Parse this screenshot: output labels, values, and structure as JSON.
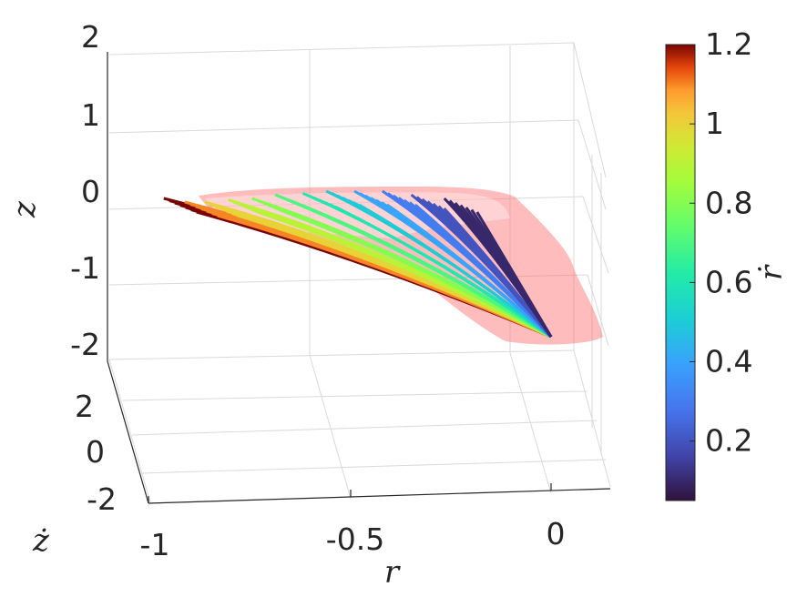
{
  "chart_data": {
    "type": "surface3d",
    "axes": {
      "x": {
        "label": "r",
        "ticks": [
          "-1",
          "-0.5",
          "0"
        ],
        "range": [
          -1,
          0.15
        ]
      },
      "y": {
        "label": "ż",
        "ticks": [
          "2",
          "0",
          "-2"
        ],
        "range": [
          -3,
          3
        ]
      },
      "z": {
        "label": "z",
        "ticks": [
          "2",
          "1",
          "0",
          "-1",
          "-2"
        ],
        "range": [
          -2,
          2
        ]
      }
    },
    "grid": true,
    "colorbar": {
      "label": "ṙ",
      "ticks": [
        "1.2",
        "1",
        "0.8",
        "0.6",
        "0.4",
        "0.2"
      ],
      "range": [
        0.05,
        1.2
      ],
      "colormap": "turbo",
      "placement": "right"
    },
    "series": [
      {
        "kind": "envelope",
        "color": "#ff6b6b",
        "opacity": 0.45
      },
      {
        "kind": "trajectory-fan",
        "apex": {
          "r": 0.0,
          "z": -1.85
        },
        "fans": [
          {
            "rdot": 0.1,
            "end_r": -0.18,
            "end_z": 0.05
          },
          {
            "rdot": 0.2,
            "end_r": -0.26,
            "end_z": 0.1
          },
          {
            "rdot": 0.3,
            "end_r": -0.33,
            "end_z": 0.15
          },
          {
            "rdot": 0.4,
            "end_r": -0.4,
            "end_z": 0.15
          },
          {
            "rdot": 0.5,
            "end_r": -0.47,
            "end_z": 0.15
          },
          {
            "rdot": 0.6,
            "end_r": -0.53,
            "end_z": 0.12
          },
          {
            "rdot": 0.7,
            "end_r": -0.6,
            "end_z": 0.1
          },
          {
            "rdot": 0.8,
            "end_r": -0.66,
            "end_z": 0.05
          },
          {
            "rdot": 0.9,
            "end_r": -0.72,
            "end_z": 0.03
          },
          {
            "rdot": 1.0,
            "end_r": -0.78,
            "end_z": 0.0
          },
          {
            "rdot": 1.1,
            "end_r": -0.83,
            "end_z": 0.0
          },
          {
            "rdot": 1.2,
            "end_r": -0.88,
            "end_z": 0.05
          }
        ]
      }
    ]
  }
}
